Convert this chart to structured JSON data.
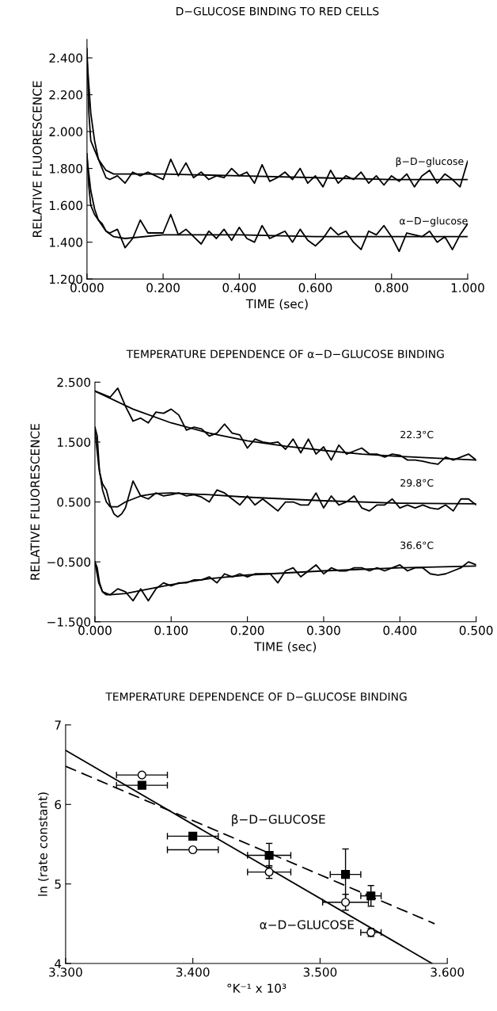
{
  "chart_data": [
    {
      "type": "line",
      "title": "D−GLUCOSE BINDING TO RED CELLS",
      "xlabel": "TIME (sec)",
      "ylabel": "RELATIVE FLUORESCENCE",
      "xlim": [
        0,
        1
      ],
      "ylim": [
        1.2,
        2.5
      ],
      "xticks": [
        {
          "value": 0,
          "label": "0.000"
        },
        {
          "value": 0.2,
          "label": "0.200"
        },
        {
          "value": 0.4,
          "label": "0.400"
        },
        {
          "value": 0.6,
          "label": "0.600"
        },
        {
          "value": 0.8,
          "label": "0.800"
        },
        {
          "value": 1,
          "label": "1.000"
        }
      ],
      "yticks": [
        {
          "value": 1.2,
          "label": "1.200"
        },
        {
          "value": 1.4,
          "label": "1.400"
        },
        {
          "value": 1.6,
          "label": "1.600"
        },
        {
          "value": 1.8,
          "label": "1.800"
        },
        {
          "value": 2.0,
          "label": "2.000"
        },
        {
          "value": 2.2,
          "label": "2.200"
        },
        {
          "value": 2.4,
          "label": "2.400"
        }
      ],
      "x": [
        0,
        0.005,
        0.01,
        0.02,
        0.03,
        0.04,
        0.05,
        0.06,
        0.08,
        0.1,
        0.12,
        0.14,
        0.16,
        0.18,
        0.2,
        0.22,
        0.24,
        0.26,
        0.28,
        0.3,
        0.32,
        0.34,
        0.36,
        0.38,
        0.4,
        0.42,
        0.44,
        0.46,
        0.48,
        0.5,
        0.52,
        0.54,
        0.56,
        0.58,
        0.6,
        0.62,
        0.64,
        0.66,
        0.68,
        0.7,
        0.72,
        0.74,
        0.76,
        0.78,
        0.8,
        0.82,
        0.84,
        0.86,
        0.88,
        0.9,
        0.92,
        0.94,
        0.96,
        0.98,
        1.0
      ],
      "grid": false,
      "legend": false,
      "series": [
        {
          "name": "β−D−glucose",
          "color": "#000000",
          "values": [
            2.45,
            2.1,
            1.95,
            1.9,
            1.85,
            1.8,
            1.75,
            1.74,
            1.76,
            1.72,
            1.78,
            1.76,
            1.78,
            1.76,
            1.74,
            1.85,
            1.76,
            1.83,
            1.75,
            1.78,
            1.74,
            1.76,
            1.75,
            1.8,
            1.76,
            1.78,
            1.72,
            1.82,
            1.73,
            1.75,
            1.78,
            1.74,
            1.8,
            1.72,
            1.76,
            1.7,
            1.79,
            1.72,
            1.76,
            1.74,
            1.78,
            1.72,
            1.76,
            1.71,
            1.76,
            1.73,
            1.77,
            1.7,
            1.76,
            1.79,
            1.72,
            1.77,
            1.74,
            1.7,
            1.84
          ]
        },
        {
          "name": "α−D−glucose",
          "color": "#000000",
          "values": [
            1.88,
            1.7,
            1.6,
            1.55,
            1.52,
            1.5,
            1.46,
            1.45,
            1.47,
            1.37,
            1.42,
            1.52,
            1.45,
            1.45,
            1.45,
            1.55,
            1.44,
            1.47,
            1.43,
            1.39,
            1.46,
            1.42,
            1.47,
            1.41,
            1.48,
            1.42,
            1.4,
            1.49,
            1.42,
            1.44,
            1.46,
            1.4,
            1.47,
            1.41,
            1.38,
            1.42,
            1.48,
            1.44,
            1.46,
            1.4,
            1.36,
            1.46,
            1.44,
            1.49,
            1.43,
            1.35,
            1.45,
            1.44,
            1.43,
            1.46,
            1.4,
            1.43,
            1.36,
            1.44,
            1.5
          ]
        },
        {
          "color": "#000000",
          "x": [
            0,
            0.01,
            0.02,
            0.03,
            0.05,
            0.07,
            0.1,
            0.2,
            0.4,
            0.6,
            0.8,
            1.0
          ],
          "values": [
            2.4,
            2.1,
            1.95,
            1.85,
            1.79,
            1.77,
            1.77,
            1.77,
            1.76,
            1.75,
            1.74,
            1.74
          ]
        },
        {
          "color": "#000000",
          "x": [
            0,
            0.01,
            0.02,
            0.03,
            0.05,
            0.07,
            0.1,
            0.2,
            0.4,
            0.6,
            0.8,
            1.0
          ],
          "values": [
            1.86,
            1.68,
            1.58,
            1.52,
            1.46,
            1.43,
            1.42,
            1.44,
            1.44,
            1.43,
            1.43,
            1.43
          ]
        }
      ]
    },
    {
      "type": "line",
      "title": "TEMPERATURE DEPENDENCE OF α−D−GLUCOSE BINDING",
      "xlabel": "TIME (sec)",
      "ylabel": "RELATIVE FLUORESCENCE",
      "xlim": [
        0,
        0.5
      ],
      "ylim": [
        -1.5,
        2.5
      ],
      "xticks": [
        {
          "value": 0,
          "label": "0.000"
        },
        {
          "value": 0.1,
          "label": "0.100"
        },
        {
          "value": 0.2,
          "label": "0.200"
        },
        {
          "value": 0.3,
          "label": "0.300"
        },
        {
          "value": 0.4,
          "label": "0.400"
        },
        {
          "value": 0.5,
          "label": "0.500"
        }
      ],
      "yticks": [
        {
          "value": -1.5,
          "label": "−1.500"
        },
        {
          "value": -0.5,
          "label": "−0.500"
        },
        {
          "value": 0.5,
          "label": "0.500"
        },
        {
          "value": 1.5,
          "label": "1.500"
        },
        {
          "value": 2.5,
          "label": "2.500"
        }
      ],
      "grid": false,
      "legend": false,
      "x": [
        0,
        0.01,
        0.02,
        0.03,
        0.04,
        0.05,
        0.06,
        0.07,
        0.08,
        0.09,
        0.1,
        0.11,
        0.12,
        0.13,
        0.14,
        0.15,
        0.16,
        0.17,
        0.18,
        0.19,
        0.2,
        0.21,
        0.22,
        0.23,
        0.24,
        0.25,
        0.26,
        0.27,
        0.28,
        0.29,
        0.3,
        0.31,
        0.32,
        0.33,
        0.34,
        0.35,
        0.36,
        0.37,
        0.38,
        0.39,
        0.4,
        0.41,
        0.42,
        0.43,
        0.44,
        0.45,
        0.46,
        0.47,
        0.48,
        0.49,
        0.5
      ],
      "series": [
        {
          "name": "22.3°C",
          "color": "#000000",
          "values": [
            2.35,
            2.3,
            2.25,
            2.4,
            2.1,
            1.85,
            1.9,
            1.82,
            2.0,
            1.98,
            2.05,
            1.95,
            1.7,
            1.75,
            1.72,
            1.6,
            1.65,
            1.8,
            1.65,
            1.62,
            1.4,
            1.55,
            1.5,
            1.48,
            1.5,
            1.38,
            1.55,
            1.32,
            1.55,
            1.3,
            1.42,
            1.2,
            1.45,
            1.3,
            1.35,
            1.4,
            1.3,
            1.3,
            1.25,
            1.3,
            1.28,
            1.2,
            1.2,
            1.18,
            1.15,
            1.13,
            1.25,
            1.2,
            1.25,
            1.3,
            1.2
          ]
        },
        {
          "name": "29.8°C",
          "color": "#000000",
          "x": [
            0,
            0.003,
            0.006,
            0.01,
            0.015,
            0.02,
            0.025,
            0.03,
            0.035,
            0.04,
            0.05,
            0.06,
            0.07,
            0.08,
            0.09,
            0.1,
            0.11,
            0.12,
            0.13,
            0.14,
            0.15,
            0.16,
            0.17,
            0.18,
            0.19,
            0.2,
            0.21,
            0.22,
            0.23,
            0.24,
            0.25,
            0.26,
            0.27,
            0.28,
            0.29,
            0.3,
            0.31,
            0.32,
            0.33,
            0.34,
            0.35,
            0.36,
            0.37,
            0.38,
            0.39,
            0.4,
            0.41,
            0.42,
            0.43,
            0.44,
            0.45,
            0.46,
            0.47,
            0.48,
            0.49,
            0.5
          ],
          "values": [
            1.75,
            1.6,
            1.0,
            0.8,
            0.7,
            0.45,
            0.3,
            0.25,
            0.3,
            0.4,
            0.85,
            0.6,
            0.55,
            0.65,
            0.6,
            0.62,
            0.65,
            0.6,
            0.62,
            0.58,
            0.5,
            0.7,
            0.65,
            0.55,
            0.45,
            0.6,
            0.45,
            0.55,
            0.45,
            0.35,
            0.5,
            0.5,
            0.45,
            0.45,
            0.65,
            0.4,
            0.6,
            0.45,
            0.5,
            0.6,
            0.4,
            0.35,
            0.45,
            0.45,
            0.55,
            0.4,
            0.45,
            0.4,
            0.45,
            0.4,
            0.38,
            0.45,
            0.35,
            0.55,
            0.55,
            0.45
          ]
        },
        {
          "name": "36.6°C",
          "color": "#000000",
          "x": [
            0,
            0.003,
            0.006,
            0.01,
            0.015,
            0.02,
            0.03,
            0.04,
            0.05,
            0.06,
            0.07,
            0.08,
            0.09,
            0.1,
            0.11,
            0.12,
            0.13,
            0.14,
            0.15,
            0.16,
            0.17,
            0.18,
            0.19,
            0.2,
            0.21,
            0.22,
            0.23,
            0.24,
            0.25,
            0.26,
            0.27,
            0.28,
            0.29,
            0.3,
            0.31,
            0.32,
            0.33,
            0.34,
            0.35,
            0.36,
            0.37,
            0.38,
            0.39,
            0.4,
            0.41,
            0.42,
            0.43,
            0.44,
            0.45,
            0.46,
            0.47,
            0.48,
            0.49,
            0.5
          ],
          "values": [
            -0.5,
            -0.6,
            -0.85,
            -1.0,
            -1.05,
            -1.05,
            -0.95,
            -1.0,
            -1.15,
            -0.95,
            -1.15,
            -0.95,
            -0.85,
            -0.9,
            -0.85,
            -0.85,
            -0.8,
            -0.8,
            -0.75,
            -0.85,
            -0.7,
            -0.75,
            -0.7,
            -0.75,
            -0.7,
            -0.7,
            -0.7,
            -0.85,
            -0.65,
            -0.6,
            -0.75,
            -0.65,
            -0.55,
            -0.7,
            -0.6,
            -0.65,
            -0.65,
            -0.6,
            -0.6,
            -0.65,
            -0.6,
            -0.65,
            -0.6,
            -0.55,
            -0.65,
            -0.6,
            -0.6,
            -0.7,
            -0.72,
            -0.7,
            -0.65,
            -0.6,
            -0.5,
            -0.55
          ]
        },
        {
          "color": "#000000",
          "x": [
            0,
            0.05,
            0.1,
            0.15,
            0.2,
            0.25,
            0.3,
            0.35,
            0.4,
            0.45,
            0.5
          ],
          "values": [
            2.35,
            2.05,
            1.82,
            1.65,
            1.52,
            1.43,
            1.36,
            1.3,
            1.26,
            1.23,
            1.2
          ]
        },
        {
          "color": "#000000",
          "x": [
            0,
            0.005,
            0.01,
            0.015,
            0.02,
            0.03,
            0.04,
            0.06,
            0.08,
            0.1,
            0.15,
            0.2,
            0.3,
            0.4,
            0.5
          ],
          "values": [
            1.7,
            1.1,
            0.7,
            0.5,
            0.42,
            0.42,
            0.5,
            0.6,
            0.64,
            0.65,
            0.62,
            0.58,
            0.52,
            0.48,
            0.47
          ]
        },
        {
          "color": "#000000",
          "x": [
            0,
            0.005,
            0.01,
            0.02,
            0.04,
            0.06,
            0.08,
            0.1,
            0.15,
            0.2,
            0.3,
            0.4,
            0.5
          ],
          "values": [
            -0.5,
            -0.85,
            -1.0,
            -1.05,
            -1.03,
            -0.98,
            -0.93,
            -0.88,
            -0.78,
            -0.72,
            -0.65,
            -0.6,
            -0.57
          ]
        }
      ]
    },
    {
      "type": "scatter",
      "title": "TEMPERATURE DEPENDENCE OF D−GLUCOSE BINDING",
      "xlabel": "°K⁻¹ x 10³",
      "ylabel": "ln (rate constant)",
      "xlim": [
        3.3,
        3.6
      ],
      "ylim": [
        4,
        7
      ],
      "xticks": [
        {
          "value": 3.3,
          "label": "3.300"
        },
        {
          "value": 3.4,
          "label": "3.400"
        },
        {
          "value": 3.5,
          "label": "3.500"
        },
        {
          "value": 3.6,
          "label": "3.600"
        }
      ],
      "yticks": [
        4,
        5,
        6,
        7
      ],
      "grid": false,
      "legend": false,
      "x": [
        3.36,
        3.4,
        3.46,
        3.52,
        3.54
      ],
      "series": [
        {
          "color": "#000000",
          "marker": "circle",
          "values": [
            6.37,
            5.43,
            5.15,
            4.77,
            4.39
          ],
          "xerrors": [
            0.02,
            0.02,
            0.017,
            0.018,
            0.008
          ],
          "errors": [
            null,
            null,
            0.08,
            0.1,
            0.05
          ]
        },
        {
          "color": "#000000",
          "marker": "square",
          "values": [
            6.24,
            5.6,
            5.36,
            5.12,
            4.85
          ],
          "xerrors": [
            0.02,
            0.02,
            0.017,
            0.012,
            0.008
          ],
          "errors": [
            null,
            null,
            0.15,
            0.32,
            0.13
          ]
        },
        {
          "type": "line",
          "name": "α−D−GLUCOSE",
          "color": "#000000",
          "line_style": "solid",
          "x": [
            3.3,
            3.588
          ],
          "values": [
            6.68,
            4.0
          ]
        },
        {
          "type": "line",
          "name": "β−D−GLUCOSE",
          "color": "#000000",
          "line_style": "dashed",
          "x": [
            3.3,
            3.59
          ],
          "values": [
            6.48,
            4.5
          ]
        }
      ]
    }
  ]
}
